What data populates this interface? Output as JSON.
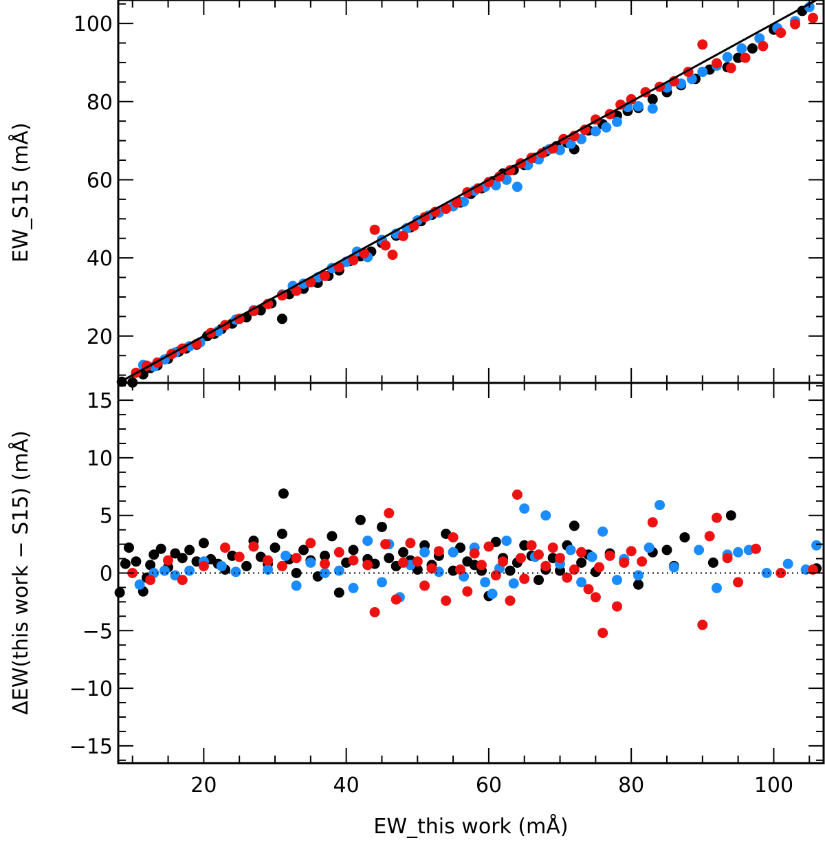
{
  "chart_data": [
    {
      "type": "scatter",
      "panel": "top",
      "xlabel": "",
      "ylabel": "EW_S15 (mÅ)",
      "xlim": [
        8,
        107
      ],
      "ylim": [
        8,
        106
      ],
      "y_ticks": [
        20,
        40,
        60,
        80,
        100
      ],
      "y_tick_labels": [
        "20",
        "40",
        "60",
        "80",
        "100"
      ],
      "reference_line": {
        "style": "solid",
        "color": "#000000",
        "slope": 1,
        "intercept": 0
      },
      "colors": {
        "black": "#000000",
        "blue": "#1a8cff",
        "red": "#ee1111"
      },
      "series": [
        {
          "name": "black",
          "x": [
            8.5,
            10,
            11.5,
            12.5,
            13.5,
            15,
            16.5,
            17.5,
            19,
            20.5,
            21.5,
            22.5,
            24,
            26,
            28,
            29.5,
            31,
            32,
            34,
            36,
            37.5,
            39,
            40.5,
            42,
            43.5,
            45,
            47,
            49,
            50.5,
            52,
            54,
            56,
            57.5,
            59,
            60.5,
            62,
            63.5,
            65,
            66.5,
            68,
            69.5,
            71,
            72,
            74,
            76,
            78,
            79.5,
            81,
            83,
            85,
            87,
            89,
            91,
            93.5,
            95,
            97,
            100,
            104
          ],
          "y": [
            8.3,
            8.1,
            10.2,
            11.8,
            12.5,
            14.2,
            16.0,
            16.8,
            17.8,
            20.0,
            20.6,
            21.8,
            23.2,
            24.8,
            26.6,
            28.4,
            24.4,
            30.7,
            32.1,
            33.6,
            35.4,
            36.8,
            39.2,
            40.4,
            41.6,
            43.8,
            45.7,
            47.8,
            49.4,
            51.0,
            52.6,
            54.2,
            56.4,
            57.8,
            59.6,
            61.6,
            62.5,
            63.8,
            65.6,
            67.2,
            68.6,
            69.5,
            67.8,
            72.6,
            74.2,
            76.4,
            77.6,
            78.4,
            80.6,
            82.4,
            84.2,
            85.8,
            88.2,
            88.8,
            91.2,
            93.6,
            98.4,
            103.2
          ]
        },
        {
          "name": "blue",
          "x": [
            11.5,
            13,
            14.5,
            16,
            18,
            19.5,
            22,
            24.5,
            27,
            29,
            31,
            32.5,
            34,
            36,
            38,
            40,
            41.5,
            43,
            45,
            47,
            48.5,
            50,
            51.5,
            53,
            55,
            56.5,
            58,
            59.5,
            61,
            62.5,
            64,
            65.5,
            67,
            68.5,
            70,
            71.5,
            73,
            75,
            76.5,
            78,
            79.5,
            81,
            83,
            85,
            87,
            88.5,
            90,
            92,
            93.5,
            95.5,
            98,
            100.5,
            103,
            105
          ],
          "y": [
            12.6,
            12.2,
            14.0,
            15.8,
            17.4,
            18.4,
            21.2,
            24.2,
            26.6,
            28.2,
            30.6,
            32.8,
            33.4,
            35.0,
            37.4,
            39.0,
            41.6,
            40.2,
            44.6,
            46.2,
            47.6,
            49.6,
            50.8,
            51.6,
            53.2,
            54.4,
            57.2,
            58.2,
            58.6,
            60.0,
            58.2,
            63.8,
            65.2,
            67.8,
            67.6,
            69.2,
            70.4,
            72.4,
            73.4,
            74.8,
            78.6,
            78.8,
            78.2,
            83.6,
            84.6,
            85.8,
            87.6,
            89.2,
            91.4,
            93.6,
            96.2,
            98.8,
            100.6,
            104.2
          ]
        },
        {
          "name": "red",
          "x": [
            10.5,
            12,
            13.5,
            15.5,
            17,
            19,
            21,
            23,
            25,
            27,
            29,
            31,
            33,
            35,
            37,
            39,
            41,
            42.5,
            44,
            45.5,
            46.5,
            48,
            49.5,
            51,
            52.5,
            54,
            55.5,
            57,
            58.5,
            60,
            61.5,
            63,
            64.5,
            66,
            67.5,
            69,
            70.5,
            72,
            73.5,
            75,
            77,
            78.5,
            80,
            82,
            84,
            86,
            88,
            90,
            92,
            94,
            96,
            98.5,
            101,
            103,
            105.5
          ],
          "y": [
            10.6,
            12.4,
            13.2,
            15.4,
            16.8,
            18.0,
            20.8,
            22.8,
            24.4,
            26.4,
            28.2,
            30.4,
            31.6,
            33.8,
            35.4,
            37.6,
            39.4,
            41.2,
            47.2,
            43.2,
            40.8,
            45.6,
            48.2,
            50.4,
            51.8,
            52.6,
            54.2,
            56.8,
            57.8,
            59.4,
            60.8,
            62.4,
            64.2,
            65.6,
            66.8,
            68.0,
            70.4,
            71.2,
            72.8,
            75.4,
            76.8,
            79.2,
            80.6,
            82.4,
            83.8,
            85.2,
            87.6,
            94.6,
            89.8,
            88.6,
            91.2,
            94.2,
            97.6,
            99.8,
            101.4
          ]
        }
      ]
    },
    {
      "type": "scatter",
      "panel": "bottom",
      "xlabel": "EW_this work (mÅ)",
      "ylabel": "ΔEW(this work − S15) (mÅ)",
      "xlim": [
        8,
        107
      ],
      "ylim": [
        -16.5,
        16.5
      ],
      "x_ticks": [
        20,
        40,
        60,
        80,
        100
      ],
      "x_tick_labels": [
        "20",
        "40",
        "60",
        "80",
        "100"
      ],
      "y_ticks": [
        -15,
        -10,
        -5,
        0,
        5,
        10,
        15
      ],
      "y_tick_labels": [
        "−15",
        "−10",
        "−5",
        "0",
        "5",
        "10",
        "15"
      ],
      "reference_line": {
        "style": "dotted",
        "color": "#000000",
        "y": 0
      },
      "colors": {
        "black": "#000000",
        "blue": "#1a8cff",
        "red": "#ee1111"
      },
      "series": [
        {
          "name": "black",
          "x": [
            8.2,
            9,
            9.5,
            10.5,
            11.5,
            12,
            12.5,
            13,
            14,
            15,
            16,
            17,
            18,
            19,
            20,
            21,
            22,
            23,
            24,
            26,
            27,
            28,
            29,
            30,
            31,
            31.2,
            32,
            33,
            34,
            35,
            36,
            37,
            38,
            39,
            40,
            41,
            42,
            43,
            44,
            45,
            46,
            47,
            48,
            49,
            50,
            51,
            52,
            53,
            54,
            55,
            56,
            57,
            58,
            59,
            60,
            61,
            62,
            63,
            64,
            65,
            66,
            67,
            68,
            69,
            70,
            71,
            72,
            73,
            74,
            75,
            77,
            79,
            81,
            83,
            85,
            86,
            87.5,
            91.5,
            94,
            106
          ],
          "y": [
            -1.7,
            0.8,
            2.2,
            1.0,
            -1.6,
            -0.4,
            0.7,
            1.6,
            2.1,
            0.5,
            1.7,
            1.3,
            2.0,
            1.0,
            2.6,
            1.2,
            0.8,
            0.3,
            1.5,
            0.6,
            2.8,
            1.4,
            0.8,
            2.2,
            3.4,
            6.9,
            1.2,
            0.0,
            2.0,
            1.1,
            -0.3,
            1.5,
            3.2,
            -1.7,
            0.9,
            2.0,
            4.6,
            1.2,
            0.8,
            4.0,
            1.3,
            0.6,
            1.8,
            1.1,
            0.3,
            2.4,
            0.7,
            1.5,
            3.4,
            0.2,
            2.2,
            1.0,
            0.7,
            0.2,
            -2.0,
            2.7,
            1.3,
            0.2,
            0.9,
            2.4,
            1.5,
            -0.6,
            0.3,
            1.3,
            0.2,
            2.4,
            4.1,
            0.9,
            1.6,
            0.1,
            1.7,
            1.2,
            -1.0,
            1.8,
            2.0,
            0.6,
            3.1,
            0.9,
            5.0,
            0.4
          ]
        },
        {
          "name": "blue",
          "x": [
            11,
            13,
            14.5,
            16,
            18,
            20,
            22.5,
            24.5,
            27,
            29,
            31.5,
            33,
            35,
            37,
            39,
            41,
            43,
            45,
            46,
            47.5,
            49,
            51,
            53,
            55,
            56.5,
            58,
            59.5,
            60.5,
            61.5,
            62.5,
            63.5,
            65,
            66.5,
            68,
            70,
            71.5,
            73,
            74.5,
            76,
            78,
            79,
            81,
            82.5,
            84,
            86,
            89.5,
            92,
            93.5,
            95,
            96.5,
            99,
            102,
            104.5,
            106
          ],
          "y": [
            -1.0,
            0.0,
            0.2,
            -0.2,
            0.2,
            1.0,
            0.6,
            0.1,
            2.3,
            0.3,
            1.5,
            -1.1,
            0.9,
            0.0,
            0.2,
            -1.3,
            2.8,
            -0.8,
            2.5,
            -2.1,
            0.7,
            1.8,
            0.1,
            1.8,
            -0.3,
            2.2,
            -0.8,
            -1.8,
            0.4,
            2.8,
            -0.9,
            5.6,
            1.4,
            5.0,
            0.8,
            2.0,
            -0.8,
            1.4,
            3.6,
            -0.6,
            1.2,
            -0.2,
            2.2,
            5.9,
            0.5,
            2.0,
            -1.3,
            1.6,
            1.8,
            2.0,
            0.0,
            0.8,
            0.3,
            2.4
          ]
        },
        {
          "name": "red",
          "x": [
            10,
            12.5,
            15,
            17,
            20,
            23,
            25,
            27,
            29,
            31,
            33,
            35,
            37,
            39,
            41,
            43,
            44,
            45.5,
            46,
            47,
            48,
            49,
            50,
            51,
            52,
            53,
            54,
            55,
            56,
            57,
            58,
            59,
            60,
            61,
            62,
            63,
            64,
            64.5,
            65,
            66,
            67,
            68,
            69,
            70,
            71,
            72,
            73,
            74,
            75,
            75.5,
            76,
            77,
            78,
            79,
            80,
            81.5,
            83,
            90,
            91,
            92,
            93.5,
            95,
            97.5,
            101,
            105.5
          ],
          "y": [
            0.0,
            -0.6,
            1.1,
            -0.6,
            0.6,
            2.2,
            1.4,
            2.3,
            1.1,
            0.6,
            1.3,
            2.6,
            0.8,
            1.8,
            1.1,
            0.7,
            -3.4,
            2.5,
            5.2,
            -2.3,
            0.9,
            2.6,
            1.0,
            -1.1,
            0.4,
            1.9,
            -2.4,
            3.1,
            0.3,
            -1.6,
            1.7,
            0.7,
            2.3,
            -0.2,
            1.0,
            -2.4,
            6.8,
            1.3,
            -0.5,
            2.4,
            1.6,
            0.6,
            2.2,
            1.3,
            -0.4,
            0.3,
            1.8,
            -1.4,
            -2.1,
            0.5,
            -5.2,
            1.5,
            -2.9,
            0.9,
            1.9,
            1.0,
            4.4,
            -4.5,
            3.2,
            4.8,
            1.3,
            -0.8,
            2.1,
            0.0,
            0.3
          ]
        }
      ]
    }
  ]
}
